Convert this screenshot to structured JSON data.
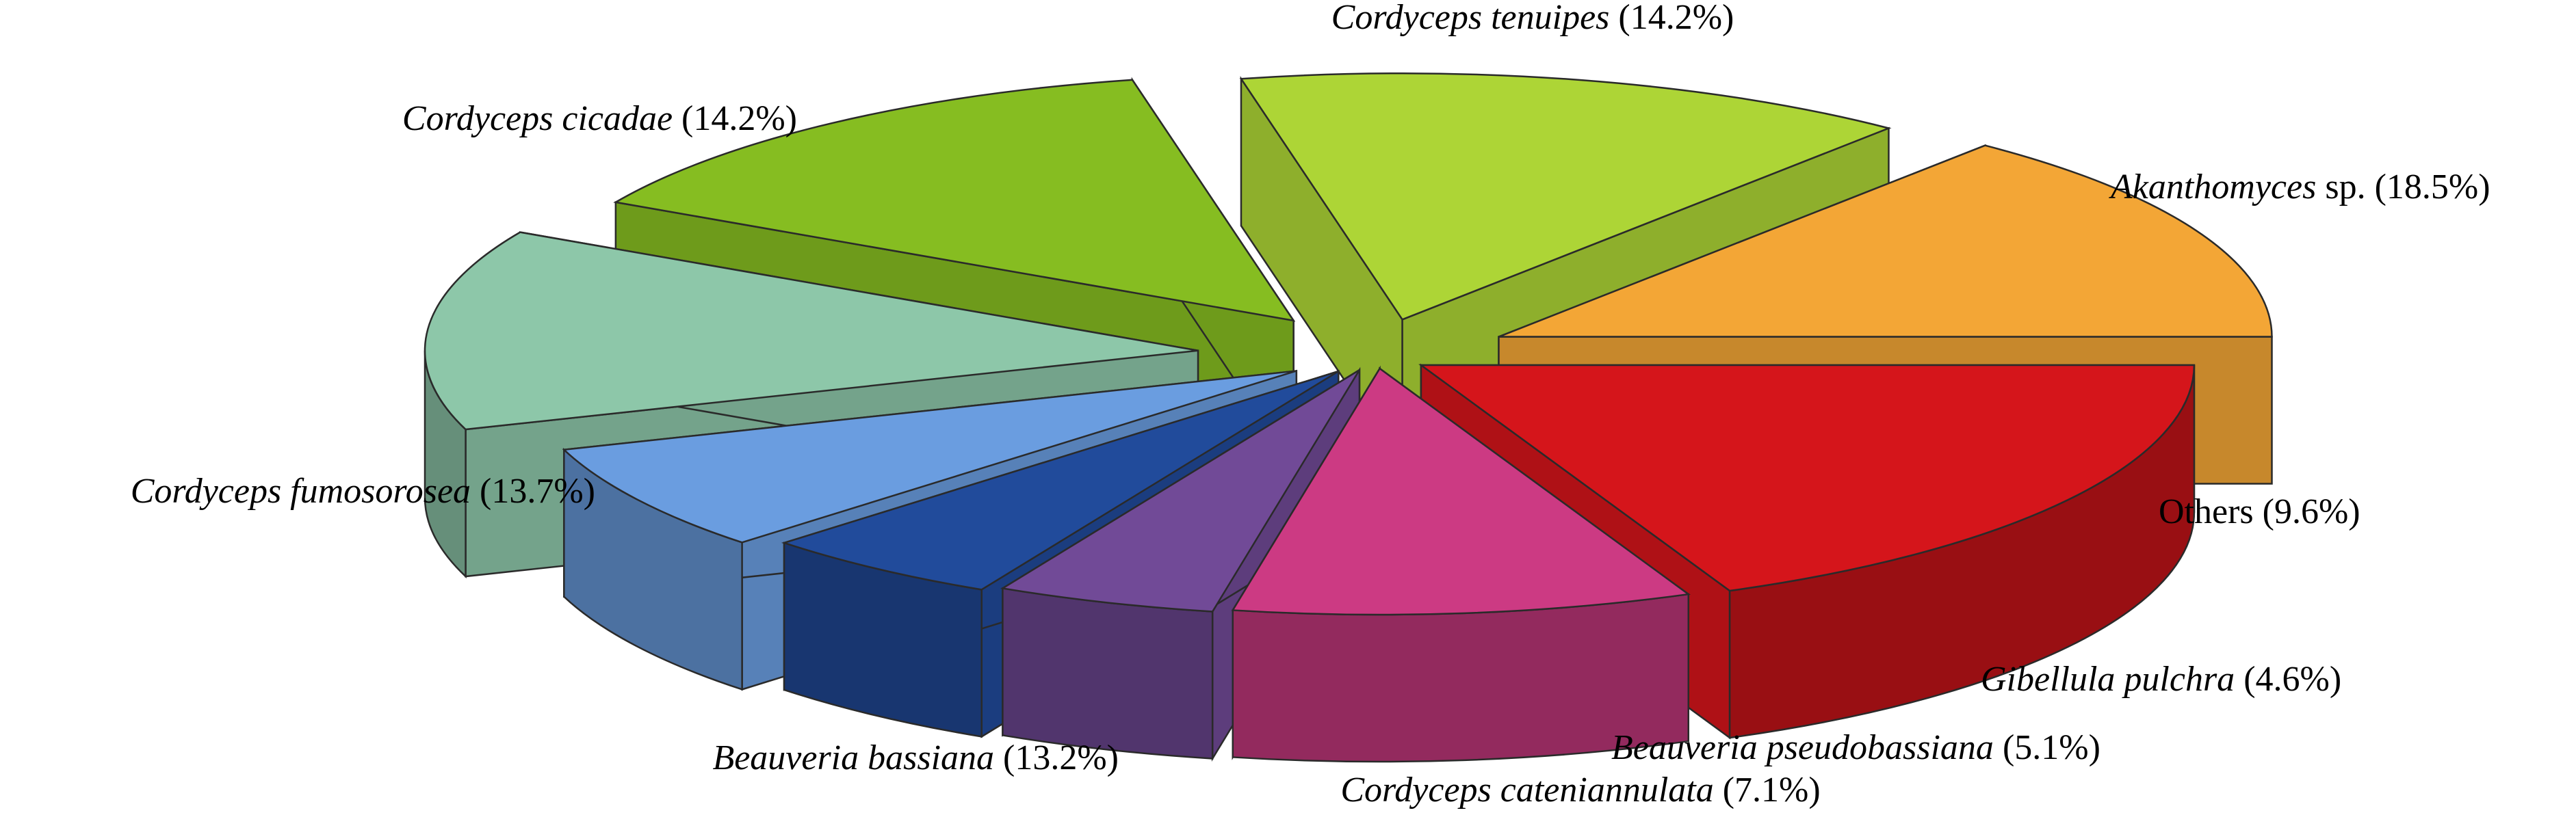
{
  "chart_data": {
    "type": "pie",
    "style": "3d-exploded",
    "title": "",
    "unit": "%",
    "slices": [
      {
        "name_italic": "Akanthomyces",
        "name_plain": " sp.",
        "value": 18.5,
        "color": "#d5151b",
        "label_anchor": "start"
      },
      {
        "name_italic": "",
        "name_plain": "Others",
        "value": 9.6,
        "color": "#cc3a83",
        "label_anchor": "start"
      },
      {
        "name_italic": "Gibellula pulchra",
        "name_plain": "",
        "value": 4.6,
        "color": "#714a97",
        "label_anchor": "start"
      },
      {
        "name_italic": "Beauveria pseudobassiana",
        "name_plain": "",
        "value": 5.1,
        "color": "#214b9b",
        "label_anchor": "start"
      },
      {
        "name_italic": "Cordyceps cateniannulata",
        "name_plain": "",
        "value": 7.1,
        "color": "#6a9de0",
        "label_anchor": "middle"
      },
      {
        "name_italic": "Beauveria bassiana",
        "name_plain": "",
        "value": 13.2,
        "color": "#8dc7a9",
        "label_anchor": "end"
      },
      {
        "name_italic": "Cordyceps fumosorosea",
        "name_plain": "",
        "value": 13.7,
        "color": "#86bd21",
        "label_anchor": "end"
      },
      {
        "name_italic": "Cordyceps cicadae",
        "name_plain": "",
        "value": 14.2,
        "color": "#add536",
        "label_anchor": "end"
      },
      {
        "name_italic": "Cordyceps tenuipes",
        "name_plain": "",
        "value": 14.2,
        "color": "#f3a636",
        "label_anchor": "middle"
      }
    ]
  }
}
